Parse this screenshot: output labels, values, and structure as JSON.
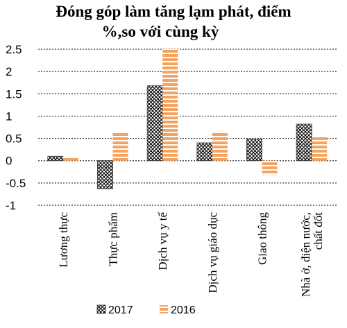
{
  "chart_data": {
    "type": "bar",
    "title_lines": [
      "Đóng góp làm tăng lạm phát, điểm",
      "%,so với cùng kỳ"
    ],
    "categories": [
      [
        "Lương thực"
      ],
      [
        "Thực phẩm"
      ],
      [
        "Dịch vụ y tế"
      ],
      [
        "Dịch vụ giáo dục"
      ],
      [
        "Giao thông"
      ],
      [
        "Nhà ở, điện nước,",
        "chất đốt"
      ]
    ],
    "series": [
      {
        "name": "2017",
        "values": [
          0.1,
          -0.63,
          1.68,
          0.4,
          0.48,
          0.82
        ],
        "color": "#000000",
        "pattern": "crosshatch"
      },
      {
        "name": "2016",
        "values": [
          0.09,
          0.65,
          2.5,
          0.65,
          -0.32,
          0.55
        ],
        "color": "#f4a460",
        "pattern": "horizontal-stripes"
      }
    ],
    "yticks": [
      "2.5",
      "2",
      "1.5",
      "1",
      "0.5",
      "0",
      "-0.5",
      "-1"
    ],
    "ylim": [
      -1,
      2.5
    ],
    "grid": true,
    "legend_position": "bottom"
  }
}
